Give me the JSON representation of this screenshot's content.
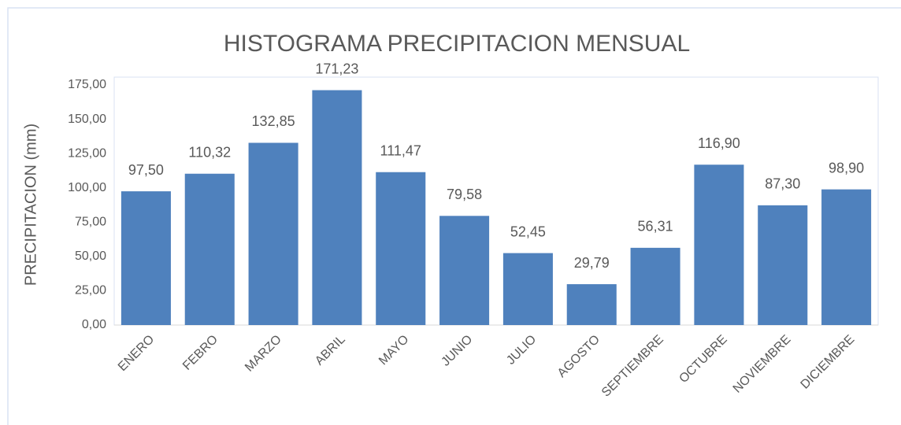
{
  "chart_data": {
    "type": "bar",
    "title": "HISTOGRAMA PRECIPITACION MENSUAL",
    "y_label": "PRECIPITACION (mm)",
    "categories": [
      "ENERO",
      "FEBRO",
      "MARZO",
      "ABRIL",
      "MAYO",
      "JUNIO",
      "JULIO",
      "AGOSTO",
      "SEPTIEMBRE",
      "OCTUBRE",
      "NOVIEMBRE",
      "DICIEMBRE"
    ],
    "values": [
      97.5,
      110.32,
      132.85,
      171.23,
      111.47,
      79.58,
      52.45,
      29.79,
      56.31,
      116.9,
      87.3,
      98.9
    ],
    "value_labels": [
      "97,50",
      "110,32",
      "132,85",
      "171,23",
      "111,47",
      "79,58",
      "52,45",
      "29,79",
      "56,31",
      "116,90",
      "87,30",
      "98,90"
    ],
    "color": "#4f81bd",
    "ylim": [
      0,
      175
    ],
    "yticks": [
      {
        "value": 0,
        "label": "0,00"
      },
      {
        "value": 25,
        "label": "25,00"
      },
      {
        "value": 50,
        "label": "50,00"
      },
      {
        "value": 75,
        "label": "75,00"
      },
      {
        "value": 100,
        "label": "100,00"
      },
      {
        "value": 125,
        "label": "125,00"
      },
      {
        "value": 150,
        "label": "150,00"
      },
      {
        "value": 175,
        "label": "175,00"
      }
    ],
    "grid": false
  }
}
